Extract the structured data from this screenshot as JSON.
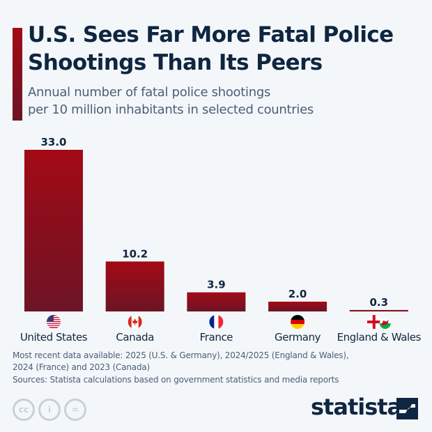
{
  "header": {
    "title": "U.S. Sees Far More Fatal Police Shootings Than Its Peers",
    "subtitle_line1": "Annual number of fatal police shootings",
    "subtitle_line2": "per 10 million inhabitants in selected countries"
  },
  "chart_data": {
    "type": "bar",
    "title": "U.S. Sees Far More Fatal Police Shootings Than Its Peers",
    "subtitle": "Annual number of fatal police shootings per 10 million inhabitants in selected countries",
    "categories": [
      "United States",
      "Canada",
      "France",
      "Germany",
      "England & Wales"
    ],
    "values": [
      33.0,
      10.2,
      3.9,
      2.0,
      0.3
    ],
    "value_labels": [
      "33.0",
      "10.2",
      "3.9",
      "2.0",
      "0.3"
    ],
    "flags": [
      "us-flag-icon",
      "canada-flag-icon",
      "france-flag-icon",
      "germany-flag-icon",
      "england-wales-flag-icon"
    ],
    "ylim": [
      0,
      33
    ],
    "grid": false,
    "legend": "none",
    "bar_color_top": "#a30a15",
    "bar_color_bottom": "#6c1426"
  },
  "footer": {
    "note_line1": "Most recent data available: 2025 (U.S. & Germany), 2024/2025 (England & Wales),",
    "note_line2": "2024 (France) and 2023 (Canada)",
    "source": "Sources: Statista calculations based on government statistics and media reports",
    "cc_icons": [
      "cc-icon",
      "attribution-icon",
      "no-derivatives-icon"
    ],
    "cc_labels": [
      "cc",
      "i",
      "="
    ],
    "logo": "statista"
  }
}
